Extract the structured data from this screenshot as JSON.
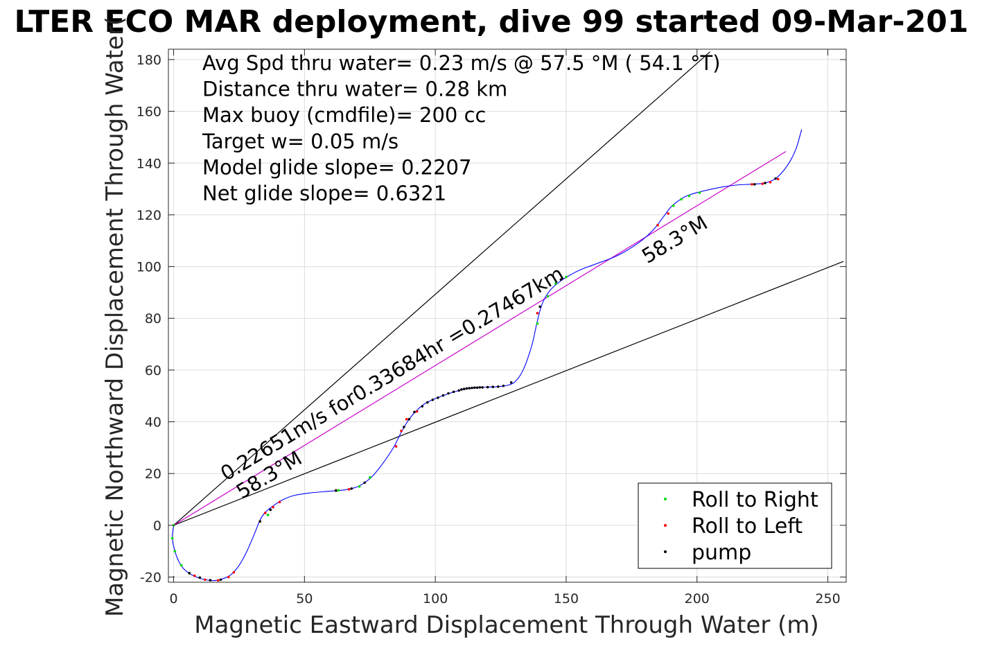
{
  "chart_data": {
    "type": "scatter",
    "title": "LTER ECO MAR deployment, dive 99 started 09-Mar-201",
    "xlabel": "Magnetic Eastward Displacement Through Water (m)",
    "ylabel": "Magnetic Northward Displacement Through Water(",
    "xlim": [
      -2,
      257
    ],
    "ylim": [
      -22,
      184
    ],
    "xticks": [
      0,
      50,
      100,
      150,
      200,
      250
    ],
    "yticks": [
      -20,
      0,
      20,
      40,
      60,
      80,
      100,
      120,
      140,
      160,
      180
    ],
    "xtick_labels": [
      "0",
      "50",
      "100",
      "150",
      "200",
      "250"
    ],
    "ytick_labels": [
      "-20",
      "0",
      "20",
      "40",
      "60",
      "80",
      "100",
      "120",
      "140",
      "160",
      "180"
    ],
    "grid": true,
    "legend_position": "bottom-right",
    "stats": [
      "Avg Spd thru water=  0.23 m/s @  57.5 °M ( 54.1 °T)",
      "Distance thru water=  0.28 km",
      "Max buoy (cmdfile)= 200 cc",
      "Target w= 0.05 m/s",
      "Model glide slope= 0.2207",
      "Net glide slope= 0.6321"
    ],
    "annotations": [
      {
        "text": "0.22651m/s for0.33684hr =0.27467km",
        "x": 20,
        "y": 17,
        "angle_deg": 31
      },
      {
        "text": "58.3°M",
        "x": 26,
        "y": 10,
        "angle_deg": 31
      },
      {
        "text": "58.3°M",
        "x": 181,
        "y": 101,
        "angle_deg": 31
      }
    ],
    "reference_lines": [
      {
        "name": "upper-bound-line",
        "points": [
          [
            0,
            0
          ],
          [
            205,
            183
          ]
        ],
        "color": "#000000"
      },
      {
        "name": "lower-bound-line",
        "points": [
          [
            0,
            0
          ],
          [
            256,
            102
          ]
        ],
        "color": "#000000"
      },
      {
        "name": "mean-heading-line",
        "points": [
          [
            0,
            0
          ],
          [
            234,
            144.5
          ]
        ],
        "color": "#cc00cc"
      }
    ],
    "series": [
      {
        "name": "track",
        "color": "#0000ff",
        "points": [
          [
            0,
            0
          ],
          [
            -0.5,
            -5
          ],
          [
            0.5,
            -10
          ],
          [
            2,
            -14
          ],
          [
            4,
            -17
          ],
          [
            7,
            -19.2
          ],
          [
            10,
            -20.5
          ],
          [
            13,
            -21.2
          ],
          [
            16,
            -21.3
          ],
          [
            19,
            -20.6
          ],
          [
            22,
            -19
          ],
          [
            25,
            -15.5
          ],
          [
            28,
            -10
          ],
          [
            31,
            -3
          ],
          [
            33,
            2
          ],
          [
            35,
            5
          ],
          [
            38,
            7.5
          ],
          [
            42,
            10
          ],
          [
            46,
            11.5
          ],
          [
            52,
            12.5
          ],
          [
            60,
            13.2
          ],
          [
            66,
            13.8
          ],
          [
            70,
            14.8
          ],
          [
            73,
            16.5
          ],
          [
            76,
            19
          ],
          [
            80,
            24
          ],
          [
            84,
            30
          ],
          [
            87,
            36
          ],
          [
            90,
            41
          ],
          [
            93,
            44.5
          ],
          [
            96,
            47
          ],
          [
            100,
            49
          ],
          [
            104,
            50.5
          ],
          [
            108,
            51.8
          ],
          [
            112,
            52.8
          ],
          [
            116,
            53.2
          ],
          [
            120,
            53.4
          ],
          [
            124,
            53.6
          ],
          [
            128,
            54.2
          ],
          [
            131,
            56
          ],
          [
            134,
            61
          ],
          [
            137,
            70
          ],
          [
            139,
            79
          ],
          [
            141,
            86
          ],
          [
            144,
            91
          ],
          [
            148,
            94.5
          ],
          [
            152,
            97
          ],
          [
            156,
            99
          ],
          [
            160,
            100.5
          ],
          [
            164,
            102
          ],
          [
            168,
            103.5
          ],
          [
            172,
            105.5
          ],
          [
            176,
            108
          ],
          [
            180,
            111
          ],
          [
            184,
            115
          ],
          [
            187,
            119
          ],
          [
            190,
            123
          ],
          [
            193,
            125.5
          ],
          [
            196,
            127.3
          ],
          [
            200,
            128.6
          ],
          [
            205,
            129.8
          ],
          [
            210,
            130.8
          ],
          [
            215,
            131.5
          ],
          [
            220,
            131.8
          ],
          [
            224,
            132
          ],
          [
            227,
            132.6
          ],
          [
            230,
            134
          ],
          [
            233,
            137
          ],
          [
            236,
            141.5
          ],
          [
            238,
            146
          ],
          [
            240,
            153
          ]
        ]
      },
      {
        "name": "Roll to Right",
        "color": "#00dd00",
        "points": [
          [
            0,
            0
          ],
          [
            -0.5,
            -5
          ],
          [
            0.5,
            -10
          ],
          [
            3,
            -15.5
          ],
          [
            6,
            -18.5
          ],
          [
            36,
            4
          ],
          [
            63,
            13.5
          ],
          [
            71,
            15
          ],
          [
            75,
            18.5
          ],
          [
            139,
            78
          ],
          [
            143,
            88.5
          ],
          [
            146,
            93.5
          ],
          [
            150,
            96
          ],
          [
            191,
            123.5
          ],
          [
            194,
            126
          ],
          [
            197,
            127.3
          ],
          [
            201,
            128.5
          ]
        ]
      },
      {
        "name": "Roll to Left",
        "color": "#ff0000",
        "points": [
          [
            8,
            -19.5
          ],
          [
            12,
            -21
          ],
          [
            17,
            -21.3
          ],
          [
            21,
            -20
          ],
          [
            23,
            -18.2
          ],
          [
            33,
            1.5
          ],
          [
            35,
            4.8
          ],
          [
            38,
            7
          ],
          [
            40.5,
            9
          ],
          [
            62,
            13.5
          ],
          [
            67,
            13.9
          ],
          [
            85,
            30.5
          ],
          [
            87,
            36.5
          ],
          [
            89,
            41
          ],
          [
            93,
            44
          ],
          [
            139,
            82
          ],
          [
            185,
            116
          ],
          [
            189,
            120.5
          ],
          [
            221,
            131.8
          ],
          [
            225,
            132
          ],
          [
            228,
            132.6
          ],
          [
            231,
            133.8
          ]
        ]
      },
      {
        "name": "pump",
        "color": "#000000",
        "points": [
          [
            6,
            -18.5
          ],
          [
            10,
            -20.2
          ],
          [
            14,
            -21.2
          ],
          [
            18,
            -21
          ],
          [
            33,
            1.5
          ],
          [
            37,
            6
          ],
          [
            62,
            13.4
          ],
          [
            68,
            14.2
          ],
          [
            73,
            16.5
          ],
          [
            88,
            38
          ],
          [
            90,
            41
          ],
          [
            92,
            43.8
          ],
          [
            95,
            46
          ],
          [
            97,
            47.5
          ],
          [
            99,
            48.5
          ],
          [
            101,
            49.3
          ],
          [
            103,
            50.2
          ],
          [
            105,
            51
          ],
          [
            107,
            51.6
          ],
          [
            109,
            52.1
          ],
          [
            110,
            52.5
          ],
          [
            111,
            52.7
          ],
          [
            112,
            52.9
          ],
          [
            113,
            53
          ],
          [
            114,
            53.1
          ],
          [
            115,
            53.2
          ],
          [
            116,
            53.2
          ],
          [
            117,
            53.3
          ],
          [
            118,
            53.3
          ],
          [
            120,
            53.4
          ],
          [
            122,
            53.5
          ],
          [
            124,
            53.6
          ],
          [
            126,
            53.9
          ],
          [
            129,
            55.2
          ],
          [
            140,
            84.5
          ],
          [
            148,
            95
          ],
          [
            222,
            131.8
          ],
          [
            226,
            132.3
          ],
          [
            230,
            134
          ]
        ]
      }
    ],
    "legend": [
      {
        "label": "Roll to Right",
        "color": "#00dd00"
      },
      {
        "label": "Roll to Left",
        "color": "#ff0000"
      },
      {
        "label": "pump",
        "color": "#000000"
      }
    ]
  }
}
